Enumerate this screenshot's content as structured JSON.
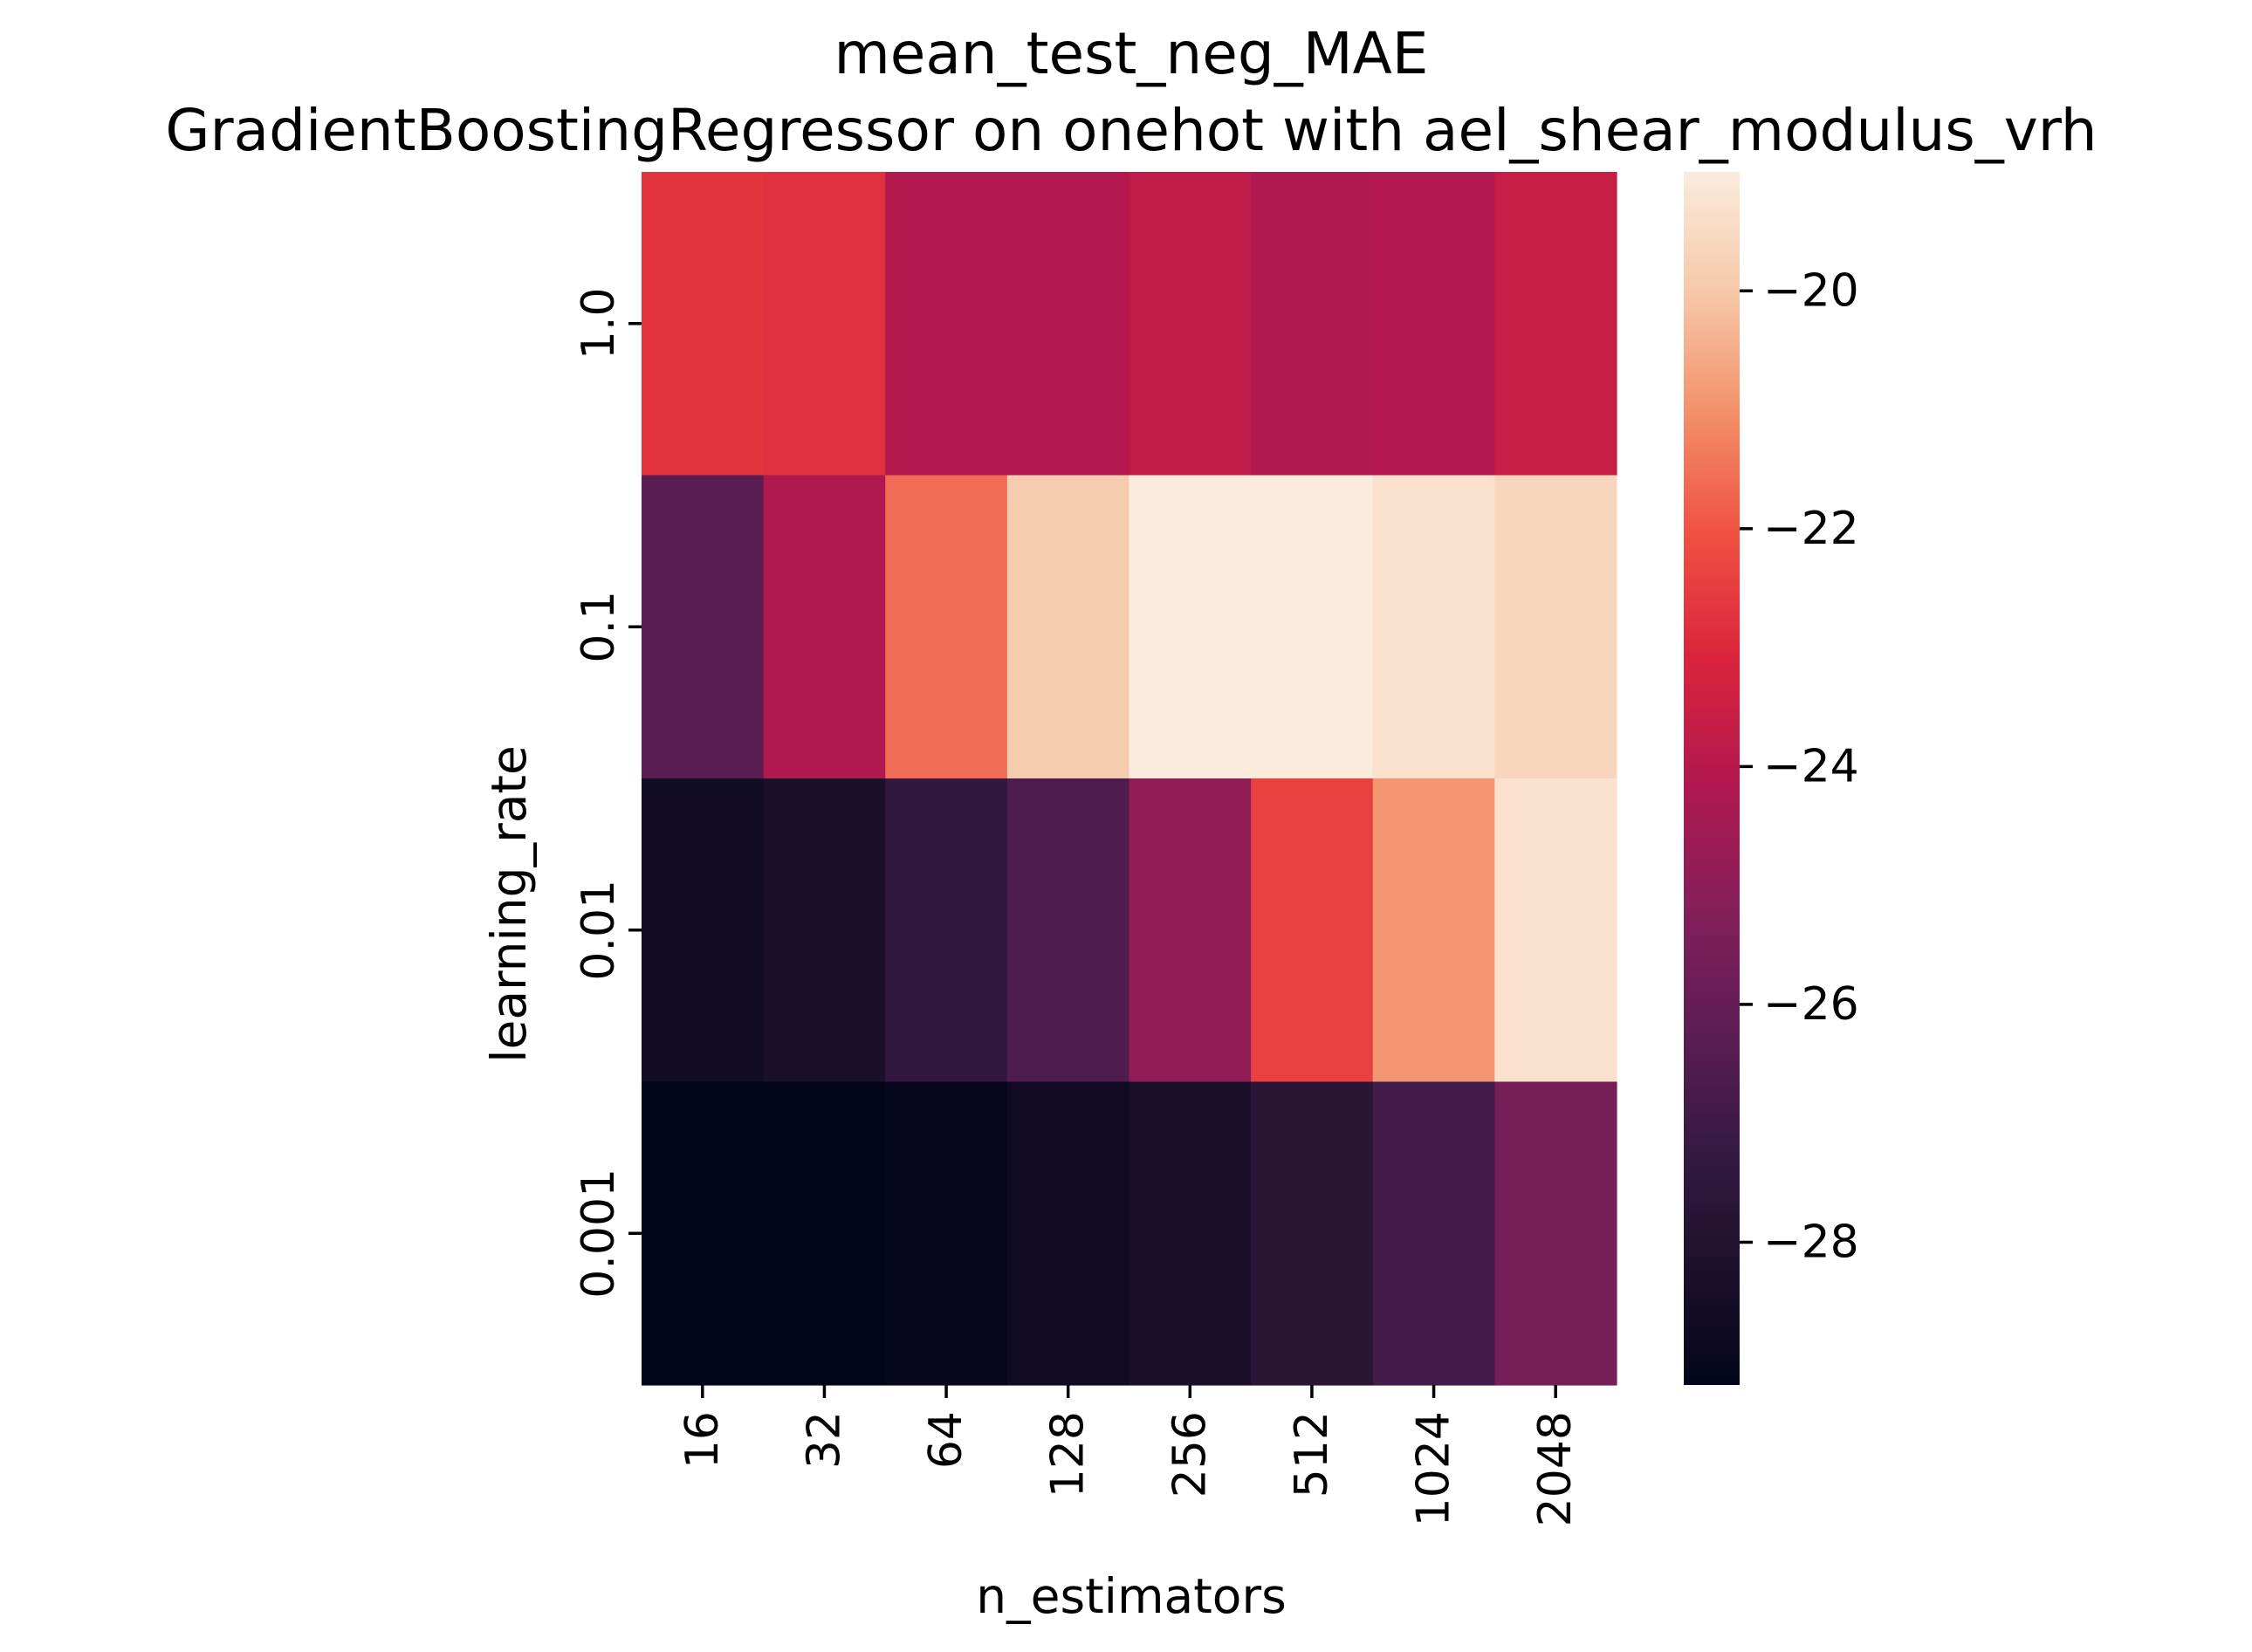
{
  "chart_data": {
    "type": "heatmap",
    "title_lines": [
      "mean_test_neg_MAE",
      "GradientBoostingRegressor on onehot with ael_shear_modulus_vrh"
    ],
    "xlabel": "n_estimators",
    "ylabel": "learning_rate",
    "x_categories": [
      "16",
      "32",
      "64",
      "128",
      "256",
      "512",
      "1024",
      "2048"
    ],
    "y_categories": [
      "1.0",
      "0.1",
      "0.01",
      "0.001"
    ],
    "values": [
      [
        -22.7,
        -22.8,
        -24.1,
        -24.1,
        -23.8,
        -24.2,
        -24.1,
        -23.6
      ],
      [
        -26.3,
        -24.2,
        -21.6,
        -19.9,
        -19.0,
        -19.0,
        -19.3,
        -19.6
      ],
      [
        -28.6,
        -28.3,
        -27.4,
        -26.6,
        -24.9,
        -22.4,
        -20.9,
        -19.3
      ],
      [
        -29.2,
        -29.2,
        -29.1,
        -28.7,
        -28.3,
        -27.7,
        -26.9,
        -25.6
      ]
    ],
    "colorbar": {
      "vmin": -29.2,
      "vmax": -19.0,
      "ticks": [
        -20,
        -22,
        -24,
        -26,
        -28
      ],
      "tick_labels": [
        "−20",
        "−22",
        "−24",
        "−26",
        "−28"
      ],
      "colormap": "rocket"
    }
  }
}
